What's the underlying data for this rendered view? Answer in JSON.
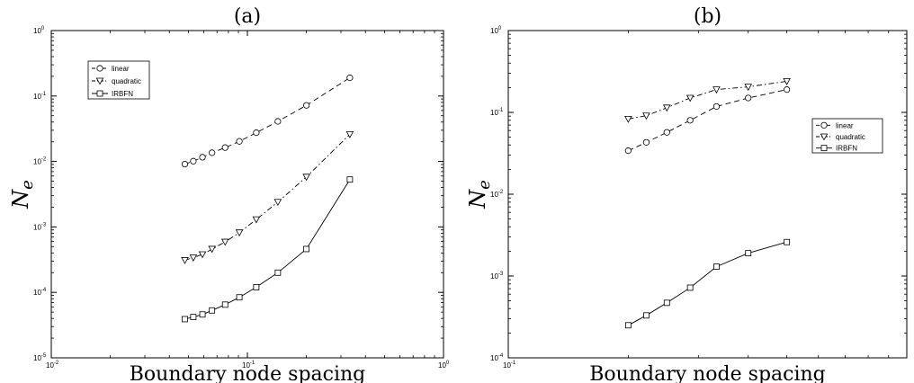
{
  "chart_data": [
    {
      "type": "line",
      "title": "(a)",
      "xlabel": "Boundary node spacing",
      "ylabel": "N",
      "ylabel_subscript": "e",
      "xscale": "log",
      "yscale": "log",
      "xlim": [
        0.01,
        1
      ],
      "ylim": [
        1e-05,
        1
      ],
      "x_ticks": [
        {
          "base": "10",
          "exp": "-2",
          "value": 0.01
        },
        {
          "base": "10",
          "exp": "-1",
          "value": 0.1
        },
        {
          "base": "10",
          "exp": "0",
          "value": 1
        }
      ],
      "y_ticks": [
        {
          "base": "10",
          "exp": "-5",
          "value": 1e-05
        },
        {
          "base": "10",
          "exp": "-4",
          "value": 0.0001
        },
        {
          "base": "10",
          "exp": "-3",
          "value": 0.001
        },
        {
          "base": "10",
          "exp": "-2",
          "value": 0.01
        },
        {
          "base": "10",
          "exp": "-1",
          "value": 0.1
        },
        {
          "base": "10",
          "exp": "0",
          "value": 1
        }
      ],
      "grid": false,
      "legend_position": "top-left",
      "series": [
        {
          "name": "linear",
          "marker": "circle",
          "line_style": "dashed",
          "x": [
            0.048,
            0.053,
            0.059,
            0.066,
            0.077,
            0.091,
            0.111,
            0.143,
            0.2,
            0.333
          ],
          "y": [
            0.0091,
            0.0101,
            0.0116,
            0.0136,
            0.0163,
            0.0203,
            0.0275,
            0.041,
            0.072,
            0.19
          ]
        },
        {
          "name": "quadratic",
          "marker": "triangle-down",
          "line_style": "dashdot",
          "x": [
            0.048,
            0.053,
            0.059,
            0.066,
            0.077,
            0.091,
            0.111,
            0.143,
            0.2,
            0.333
          ],
          "y": [
            0.00031,
            0.00034,
            0.00038,
            0.00046,
            0.00059,
            0.00082,
            0.0013,
            0.0024,
            0.0058,
            0.026
          ]
        },
        {
          "name": "IRBFN",
          "marker": "square",
          "line_style": "solid",
          "x": [
            0.048,
            0.053,
            0.059,
            0.066,
            0.077,
            0.091,
            0.111,
            0.143,
            0.2,
            0.333
          ],
          "y": [
            3.9e-05,
            4.2e-05,
            4.6e-05,
            5.3e-05,
            6.5e-05,
            8.4e-05,
            0.00012,
            0.0002,
            0.00046,
            0.0053
          ]
        }
      ]
    },
    {
      "type": "line",
      "title": "(b)",
      "xlabel": "Boundary node spacing",
      "ylabel": "N",
      "ylabel_subscript": "e",
      "xscale": "log",
      "yscale": "log",
      "xlim": [
        0.1,
        1
      ],
      "ylim": [
        0.0001,
        1
      ],
      "x_ticks": [
        {
          "base": "10",
          "exp": "-1",
          "value": 0.1
        }
      ],
      "y_ticks": [
        {
          "base": "10",
          "exp": "-4",
          "value": 0.0001
        },
        {
          "base": "10",
          "exp": "-3",
          "value": 0.001
        },
        {
          "base": "10",
          "exp": "-2",
          "value": 0.01
        },
        {
          "base": "10",
          "exp": "-1",
          "value": 0.1
        },
        {
          "base": "10",
          "exp": "0",
          "value": 1
        }
      ],
      "grid": false,
      "legend_position": "right",
      "series": [
        {
          "name": "linear",
          "marker": "circle",
          "line_style": "dashed",
          "x": [
            0.2,
            0.222,
            0.25,
            0.286,
            0.333,
            0.4,
            0.5
          ],
          "y": [
            0.034,
            0.043,
            0.057,
            0.08,
            0.118,
            0.15,
            0.19
          ]
        },
        {
          "name": "quadratic",
          "marker": "triangle-down",
          "line_style": "dashdot",
          "x": [
            0.2,
            0.222,
            0.25,
            0.286,
            0.333,
            0.4,
            0.5
          ],
          "y": [
            0.083,
            0.091,
            0.114,
            0.15,
            0.19,
            0.205,
            0.24
          ]
        },
        {
          "name": "IRBFN",
          "marker": "square",
          "line_style": "solid",
          "x": [
            0.2,
            0.222,
            0.25,
            0.286,
            0.333,
            0.4,
            0.5
          ],
          "y": [
            0.00025,
            0.00033,
            0.00047,
            0.00072,
            0.0013,
            0.0019,
            0.0026
          ]
        }
      ]
    }
  ]
}
